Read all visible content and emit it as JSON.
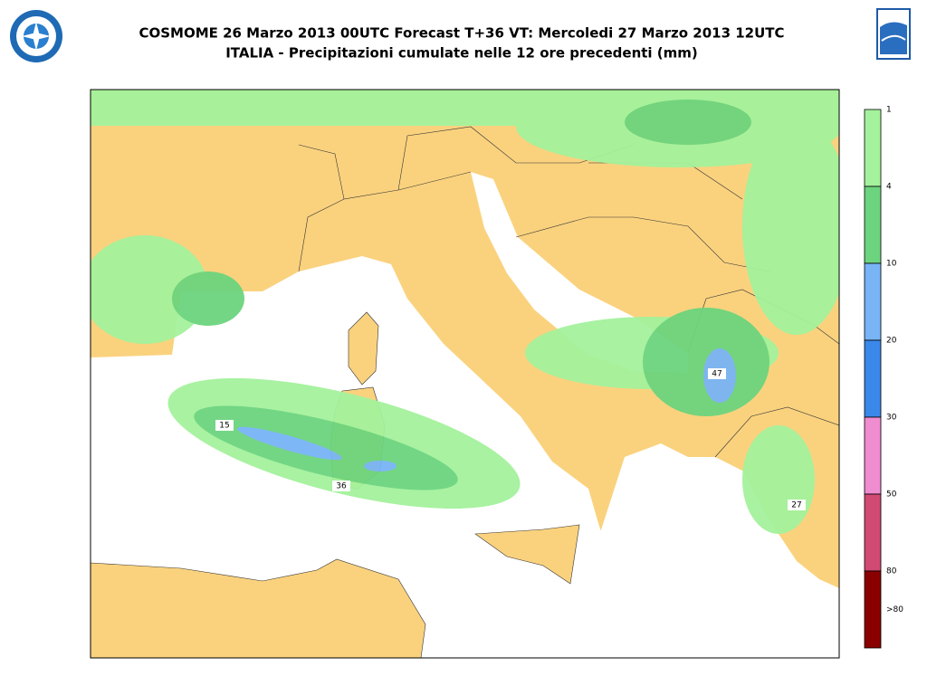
{
  "header": {
    "title": "COSMOME 26 Marzo 2013 00UTC Forecast T+36 VT: Mercoledi 27 Marzo 2013 12UTC",
    "subtitle": "ITALIA - Precipitazioni cumulate nelle 12 ore precedenti (mm)"
  },
  "legend": {
    "labels": [
      "1",
      "4",
      "10",
      "20",
      "30",
      "50",
      "80",
      ">80"
    ],
    "colors": [
      "#a4f29c",
      "#6cd47e",
      "#78b4f6",
      "#3a88ea",
      "#f08cd0",
      "#d04a72",
      "#8a0000"
    ]
  },
  "map": {
    "annotations": [
      "15",
      "36",
      "47",
      "27"
    ]
  }
}
